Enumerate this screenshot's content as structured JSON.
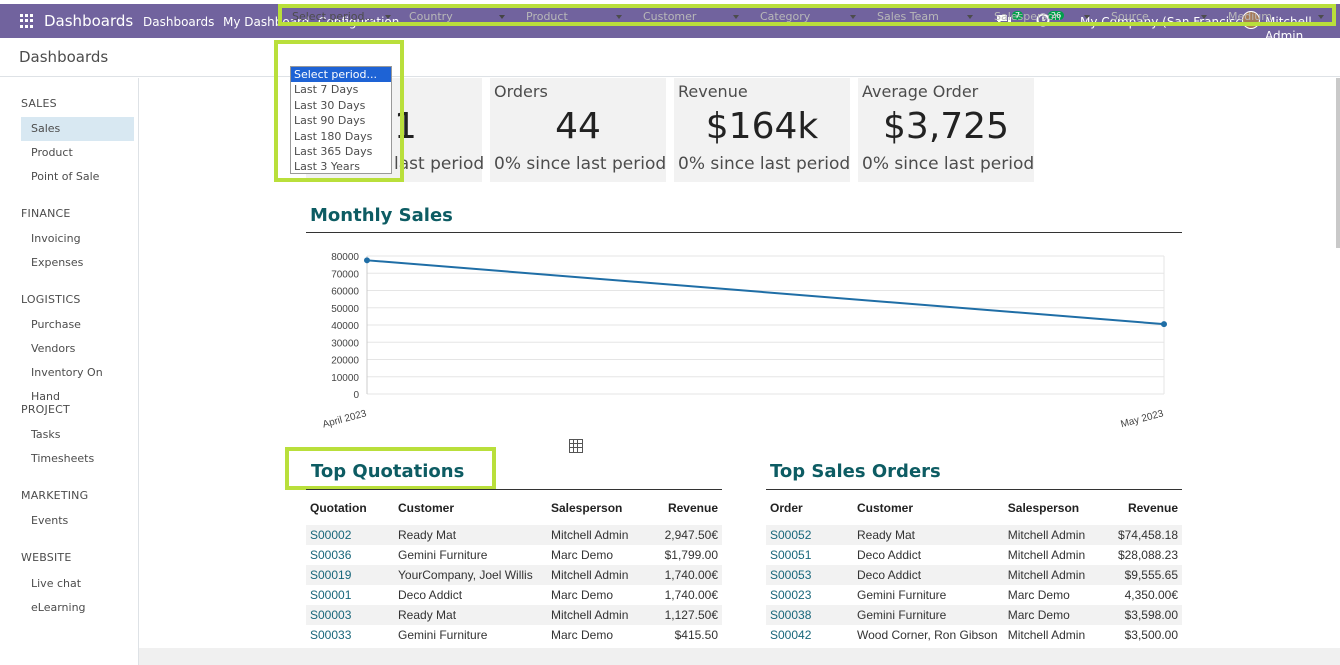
{
  "topbar": {
    "brand": "Dashboards",
    "nav": [
      "Dashboards",
      "My Dashboard",
      "Configuration"
    ],
    "messages_count": "7",
    "activities_count": "26",
    "company": "My Company (San Francisco)",
    "user": "Mitchell Admin"
  },
  "control": {
    "breadcrumb": "Dashboards",
    "filters": [
      "Select period...",
      "Country",
      "Product",
      "Customer",
      "Category",
      "Sales Team",
      "Salesperson",
      "Source",
      "Medium"
    ]
  },
  "period_dropdown": {
    "options": [
      "Select period...",
      "Last 7 Days",
      "Last 30 Days",
      "Last 90 Days",
      "Last 180 Days",
      "Last 365 Days",
      "Last 3 Years"
    ]
  },
  "sidebar": {
    "sections": [
      {
        "title": "SALES",
        "items": [
          "Sales",
          "Product",
          "Point of Sale"
        ]
      },
      {
        "title": "FINANCE",
        "items": [
          "Invoicing",
          "Expenses"
        ]
      },
      {
        "title": "LOGISTICS",
        "items": [
          "Purchase",
          "Vendors",
          "Inventory On Hand"
        ]
      },
      {
        "title": "PROJECT",
        "items": [
          "Tasks",
          "Timesheets"
        ]
      },
      {
        "title": "MARKETING",
        "items": [
          "Events"
        ]
      },
      {
        "title": "WEBSITE",
        "items": [
          "Live chat",
          "eLearning"
        ]
      }
    ]
  },
  "kpis": [
    {
      "label": "",
      "value": "1",
      "delta": "last period"
    },
    {
      "label": "Orders",
      "value": "44",
      "delta": "0% since last period"
    },
    {
      "label": "Revenue",
      "value": "$164k",
      "delta": "0% since last period"
    },
    {
      "label": "Average Order",
      "value": "$3,725",
      "delta": "0% since last period"
    }
  ],
  "monthly_sales": {
    "title": "Monthly Sales"
  },
  "chart_data": {
    "type": "line",
    "title": "Monthly Sales",
    "categories": [
      "April 2023",
      "May 2023"
    ],
    "series": [
      {
        "values": [
          77500,
          40500
        ]
      }
    ],
    "ylim": [
      0,
      80000
    ],
    "yticks": [
      0,
      10000,
      20000,
      30000,
      40000,
      50000,
      60000,
      70000,
      80000
    ],
    "grid": true,
    "color": "#1f6ea6"
  },
  "top_quotations": {
    "title": "Top Quotations",
    "headers": [
      "Quotation",
      "Customer",
      "Salesperson",
      "Revenue"
    ],
    "rows": [
      [
        "S00002",
        "Ready Mat",
        "Mitchell Admin",
        "2,947.50€"
      ],
      [
        "S00036",
        "Gemini Furniture",
        "Marc Demo",
        "$1,799.00"
      ],
      [
        "S00019",
        "YourCompany, Joel Willis",
        "Mitchell Admin",
        "1,740.00€"
      ],
      [
        "S00001",
        "Deco Addict",
        "Marc Demo",
        "1,740.00€"
      ],
      [
        "S00003",
        "Ready Mat",
        "Mitchell Admin",
        "1,127.50€"
      ],
      [
        "S00033",
        "Gemini Furniture",
        "Marc Demo",
        "$415.50"
      ]
    ]
  },
  "top_sales_orders": {
    "title": "Top Sales Orders",
    "headers": [
      "Order",
      "Customer",
      "Salesperson",
      "Revenue"
    ],
    "rows": [
      [
        "S00052",
        "Ready Mat",
        "Mitchell Admin",
        "$74,458.18"
      ],
      [
        "S00051",
        "Deco Addict",
        "Mitchell Admin",
        "$28,088.23"
      ],
      [
        "S00053",
        "Deco Addict",
        "Mitchell Admin",
        "$9,555.65"
      ],
      [
        "S00023",
        "Gemini Furniture",
        "Marc Demo",
        "4,350.00€"
      ],
      [
        "S00038",
        "Gemini Furniture",
        "Marc Demo",
        "$3,598.00"
      ],
      [
        "S00042",
        "Wood Corner, Ron Gibson",
        "Mitchell Admin",
        "$3,500.00"
      ]
    ]
  }
}
